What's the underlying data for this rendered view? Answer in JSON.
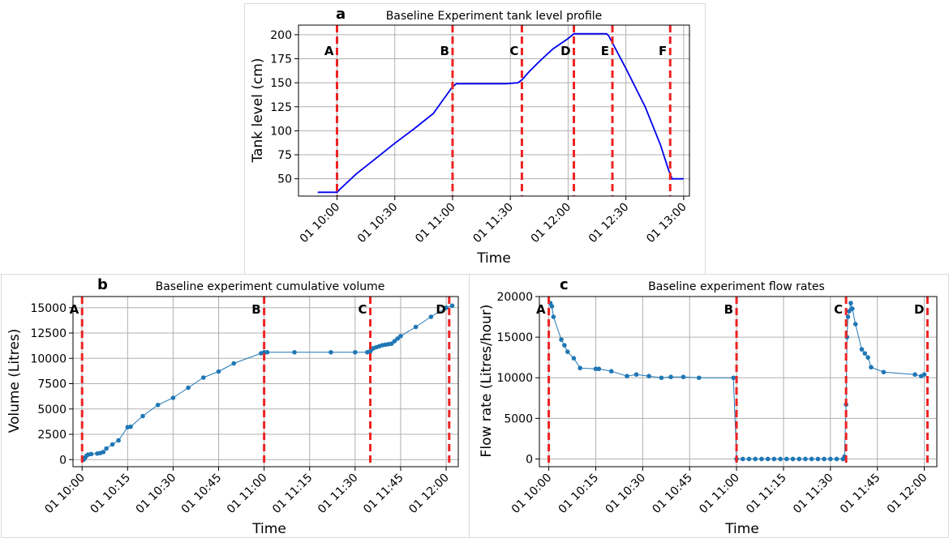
{
  "figure": {
    "panels": [
      {
        "letter": "a",
        "chart_data": {
          "type": "line",
          "title": "Baseline Experiment tank level profile",
          "xlabel": "Time",
          "ylabel": "Tank level (cm)",
          "xlim": [
            "09:40",
            "13:03"
          ],
          "ylim": [
            32,
            210
          ],
          "yticks": [
            50,
            75,
            100,
            125,
            150,
            175,
            200
          ],
          "xticks": [
            {
              "t": "10:00",
              "label": "01 10:00"
            },
            {
              "t": "10:30",
              "label": "01 10:30"
            },
            {
              "t": "11:00",
              "label": "01 11:00"
            },
            {
              "t": "11:30",
              "label": "01 11:30"
            },
            {
              "t": "12:00",
              "label": "01 12:00"
            },
            {
              "t": "12:30",
              "label": "01 12:30"
            },
            {
              "t": "13:00",
              "label": "01 13:00"
            }
          ],
          "grid": true,
          "series": [
            {
              "color": "#0000ee",
              "markers": false,
              "points": [
                [
                  "09:50",
                  36
                ],
                [
                  "10:00",
                  36
                ],
                [
                  "10:02",
                  40
                ],
                [
                  "10:10",
                  55
                ],
                [
                  "10:20",
                  71
                ],
                [
                  "10:30",
                  87
                ],
                [
                  "10:40",
                  102
                ],
                [
                  "10:50",
                  118
                ],
                [
                  "11:00",
                  146
                ],
                [
                  "11:02",
                  149
                ],
                [
                  "11:28",
                  149
                ],
                [
                  "11:34",
                  150
                ],
                [
                  "11:36",
                  153
                ],
                [
                  "11:40",
                  162
                ],
                [
                  "11:45",
                  172
                ],
                [
                  "11:52",
                  185
                ],
                [
                  "12:00",
                  196
                ],
                [
                  "12:03",
                  201
                ],
                [
                  "12:20",
                  201
                ],
                [
                  "12:21",
                  199
                ],
                [
                  "12:30",
                  165
                ],
                [
                  "12:40",
                  125
                ],
                [
                  "12:48",
                  85
                ],
                [
                  "12:52",
                  60
                ],
                [
                  "12:54",
                  50
                ],
                [
                  "13:00",
                  50
                ]
              ]
            }
          ],
          "markers": [
            {
              "label": "A",
              "t": "10:00"
            },
            {
              "label": "B",
              "t": "11:00"
            },
            {
              "label": "C",
              "t": "11:36"
            },
            {
              "label": "D",
              "t": "12:03"
            },
            {
              "label": "E",
              "t": "12:23"
            },
            {
              "label": "F",
              "t": "12:53"
            }
          ]
        }
      },
      {
        "letter": "b",
        "chart_data": {
          "type": "line",
          "title": "Baseline experiment cumulative volume",
          "xlabel": "Time",
          "ylabel": "Volume (Litres)",
          "xlim": [
            "09:57",
            "12:04"
          ],
          "ylim": [
            -700,
            16100
          ],
          "yticks": [
            0,
            2500,
            5000,
            7500,
            10000,
            12500,
            15000
          ],
          "xticks": [
            {
              "t": "10:00",
              "label": "01 10:00"
            },
            {
              "t": "10:15",
              "label": "01 10:15"
            },
            {
              "t": "10:30",
              "label": "01 10:30"
            },
            {
              "t": "10:45",
              "label": "01 10:45"
            },
            {
              "t": "11:00",
              "label": "01 11:00"
            },
            {
              "t": "11:15",
              "label": "01 11:15"
            },
            {
              "t": "11:30",
              "label": "01 11:30"
            },
            {
              "t": "11:45",
              "label": "01 11:45"
            },
            {
              "t": "12:00",
              "label": "01 12:00"
            }
          ],
          "grid": true,
          "series": [
            {
              "color": "#1f77b4",
              "markers": true,
              "points": [
                [
                  "10:00.5",
                  0
                ],
                [
                  "10:01",
                  200
                ],
                [
                  "10:01.5",
                  400
                ],
                [
                  "10:02",
                  500
                ],
                [
                  "10:03",
                  550
                ],
                [
                  "10:05",
                  600
                ],
                [
                  "10:06",
                  650
                ],
                [
                  "10:07",
                  750
                ],
                [
                  "10:08",
                  1100
                ],
                [
                  "10:10",
                  1500
                ],
                [
                  "10:12",
                  1900
                ],
                [
                  "10:15",
                  3200
                ],
                [
                  "10:16",
                  3250
                ],
                [
                  "10:20",
                  4300
                ],
                [
                  "10:25",
                  5400
                ],
                [
                  "10:30",
                  6100
                ],
                [
                  "10:35",
                  7100
                ],
                [
                  "10:40",
                  8100
                ],
                [
                  "10:45",
                  8700
                ],
                [
                  "10:50",
                  9500
                ],
                [
                  "10:59",
                  10500
                ],
                [
                  "11:00",
                  10600
                ],
                [
                  "11:01",
                  10600
                ],
                [
                  "11:10",
                  10600
                ],
                [
                  "11:22",
                  10600
                ],
                [
                  "11:30",
                  10600
                ],
                [
                  "11:34",
                  10600
                ],
                [
                  "11:35",
                  10700
                ],
                [
                  "11:35.5",
                  10900
                ],
                [
                  "11:36",
                  11000
                ],
                [
                  "11:37",
                  11100
                ],
                [
                  "11:38",
                  11200
                ],
                [
                  "11:39",
                  11300
                ],
                [
                  "11:40",
                  11350
                ],
                [
                  "11:41",
                  11400
                ],
                [
                  "11:42",
                  11450
                ],
                [
                  "11:43",
                  11700
                ],
                [
                  "11:44",
                  11950
                ],
                [
                  "11:45",
                  12200
                ],
                [
                  "11:50",
                  13100
                ],
                [
                  "11:55",
                  14100
                ],
                [
                  "12:00",
                  15000
                ],
                [
                  "12:02",
                  15200
                ]
              ]
            }
          ],
          "markers": [
            {
              "label": "A",
              "t": "10:00"
            },
            {
              "label": "B",
              "t": "11:00"
            },
            {
              "label": "C",
              "t": "11:35"
            },
            {
              "label": "D",
              "t": "12:01"
            }
          ]
        }
      },
      {
        "letter": "c",
        "chart_data": {
          "type": "line",
          "title": "Baseline experiment flow rates",
          "xlabel": "Time",
          "ylabel": "Flow rate (Litres/hour)",
          "xlim": [
            "09:57",
            "12:04"
          ],
          "ylim": [
            -950,
            20000
          ],
          "yticks": [
            0,
            5000,
            10000,
            15000,
            20000
          ],
          "xticks": [
            {
              "t": "10:00",
              "label": "01 10:00"
            },
            {
              "t": "10:15",
              "label": "01 10:15"
            },
            {
              "t": "10:30",
              "label": "01 10:30"
            },
            {
              "t": "10:45",
              "label": "01 10:45"
            },
            {
              "t": "11:00",
              "label": "01 11:00"
            },
            {
              "t": "11:15",
              "label": "01 11:15"
            },
            {
              "t": "11:30",
              "label": "01 11:30"
            },
            {
              "t": "11:45",
              "label": "01 11:45"
            },
            {
              "t": "12:00",
              "label": "01 12:00"
            }
          ],
          "grid": true,
          "series": [
            {
              "color": "#1f77b4",
              "markers": true,
              "points": [
                [
                  "10:00.5",
                  19200
                ],
                [
                  "10:01",
                  18800
                ],
                [
                  "10:01.5",
                  17500
                ],
                [
                  "10:04",
                  14700
                ],
                [
                  "10:05",
                  14000
                ],
                [
                  "10:06",
                  13200
                ],
                [
                  "10:08",
                  12400
                ],
                [
                  "10:10",
                  11200
                ],
                [
                  "10:15",
                  11100
                ],
                [
                  "10:16",
                  11100
                ],
                [
                  "10:20",
                  10800
                ],
                [
                  "10:25",
                  10200
                ],
                [
                  "10:28",
                  10400
                ],
                [
                  "10:32",
                  10200
                ],
                [
                  "10:36",
                  10000
                ],
                [
                  "10:39",
                  10100
                ],
                [
                  "10:43",
                  10100
                ],
                [
                  "10:48",
                  10000
                ],
                [
                  "10:59",
                  10000
                ],
                [
                  "11:00",
                  0
                ],
                [
                  "11:02",
                  0
                ],
                [
                  "11:04",
                  0
                ],
                [
                  "11:06",
                  0
                ],
                [
                  "11:08",
                  0
                ],
                [
                  "11:10",
                  0
                ],
                [
                  "11:12",
                  0
                ],
                [
                  "11:14",
                  0
                ],
                [
                  "11:16",
                  0
                ],
                [
                  "11:18",
                  0
                ],
                [
                  "11:20",
                  0
                ],
                [
                  "11:22",
                  0
                ],
                [
                  "11:24",
                  0
                ],
                [
                  "11:26",
                  0
                ],
                [
                  "11:28",
                  0
                ],
                [
                  "11:30",
                  0
                ],
                [
                  "11:32",
                  0
                ],
                [
                  "11:34",
                  0
                ],
                [
                  "11:34.5",
                  300
                ],
                [
                  "11:35",
                  6700
                ],
                [
                  "11:35.3",
                  15000
                ],
                [
                  "11:35.6",
                  17500
                ],
                [
                  "11:36",
                  18200
                ],
                [
                  "11:36.5",
                  19200
                ],
                [
                  "11:37",
                  18500
                ],
                [
                  "11:38",
                  16600
                ],
                [
                  "11:40",
                  13500
                ],
                [
                  "11:41",
                  13000
                ],
                [
                  "11:42",
                  12500
                ],
                [
                  "11:43",
                  11300
                ],
                [
                  "11:47",
                  10700
                ],
                [
                  "11:57",
                  10400
                ],
                [
                  "11:59",
                  10200
                ],
                [
                  "12:00",
                  10400
                ]
              ]
            }
          ],
          "markers": [
            {
              "label": "A",
              "t": "10:00"
            },
            {
              "label": "B",
              "t": "11:00"
            },
            {
              "label": "C",
              "t": "11:35"
            },
            {
              "label": "D",
              "t": "12:01"
            }
          ]
        }
      }
    ]
  }
}
